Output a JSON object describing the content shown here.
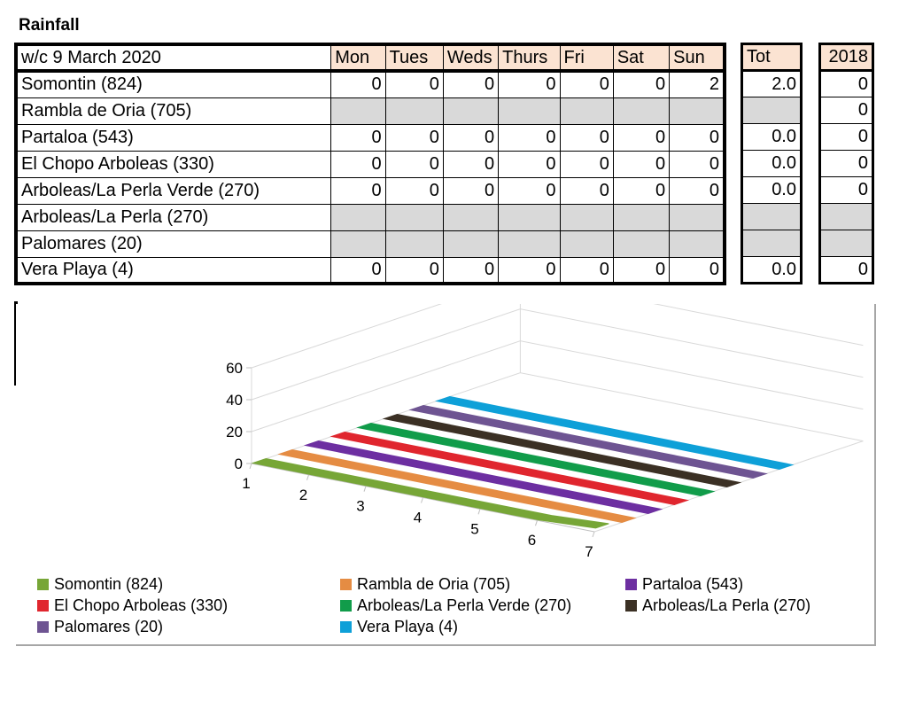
{
  "title": "Rainfall",
  "header": {
    "week": "w/c  9 March 2020",
    "days": [
      "Mon",
      "Tues",
      "Weds",
      "Thurs",
      "Fri",
      "Sat",
      "Sun"
    ],
    "tot": "Tot",
    "year": "2018"
  },
  "rows": [
    {
      "name": "Somontin (824)",
      "days": [
        "0",
        "0",
        "0",
        "0",
        "0",
        "0",
        "2"
      ],
      "tot": "2.0",
      "year": "0"
    },
    {
      "name": "Rambla de Oria (705)",
      "days": [
        "",
        "",
        "",
        "",
        "",
        "",
        ""
      ],
      "tot": "",
      "year": "0"
    },
    {
      "name": "Partaloa (543)",
      "days": [
        "0",
        "0",
        "0",
        "0",
        "0",
        "0",
        "0"
      ],
      "tot": "0.0",
      "year": "0"
    },
    {
      "name": "El Chopo Arboleas (330)",
      "days": [
        "0",
        "0",
        "0",
        "0",
        "0",
        "0",
        "0"
      ],
      "tot": "0.0",
      "year": "0"
    },
    {
      "name": "Arboleas/La Perla Verde (270)",
      "days": [
        "0",
        "0",
        "0",
        "0",
        "0",
        "0",
        "0"
      ],
      "tot": "0.0",
      "year": "0"
    },
    {
      "name": "Arboleas/La Perla (270)",
      "days": [
        "",
        "",
        "",
        "",
        "",
        "",
        ""
      ],
      "tot": "",
      "year": ""
    },
    {
      "name": "Palomares (20)",
      "days": [
        "",
        "",
        "",
        "",
        "",
        "",
        ""
      ],
      "tot": "",
      "year": ""
    },
    {
      "name": "Vera Playa (4)",
      "days": [
        "0",
        "0",
        "0",
        "0",
        "0",
        "0",
        "0"
      ],
      "tot": "0.0",
      "year": "0"
    }
  ],
  "chart_data": {
    "type": "line",
    "view": "3d",
    "x": [
      1,
      2,
      3,
      4,
      5,
      6,
      7
    ],
    "yticks": [
      0,
      20,
      40,
      60
    ],
    "ylim": [
      0,
      60
    ],
    "grid": true,
    "legend_position": "bottom",
    "series": [
      {
        "name": "Somontin (824)",
        "color": "#77a637",
        "values": [
          0,
          0,
          0,
          0,
          0,
          0,
          2
        ]
      },
      {
        "name": "Rambla de Oria (705)",
        "color": "#e58c43",
        "values": [
          0,
          0,
          0,
          0,
          0,
          0,
          0
        ]
      },
      {
        "name": "Partaloa (543)",
        "color": "#6d2fa1",
        "values": [
          0,
          0,
          0,
          0,
          0,
          0,
          0
        ]
      },
      {
        "name": "El Chopo Arboleas (330)",
        "color": "#e0262e",
        "values": [
          0,
          0,
          0,
          0,
          0,
          0,
          0
        ]
      },
      {
        "name": "Arboleas/La Perla Verde (270)",
        "color": "#119c4a",
        "values": [
          0,
          0,
          0,
          0,
          0,
          0,
          0
        ]
      },
      {
        "name": "Arboleas/La Perla (270)",
        "color": "#3b3024",
        "values": [
          0,
          0,
          0,
          0,
          0,
          0,
          0
        ]
      },
      {
        "name": "Palomares (20)",
        "color": "#6e5492",
        "values": [
          0,
          0,
          0,
          0,
          0,
          0,
          0
        ]
      },
      {
        "name": "Vera Playa (4)",
        "color": "#0ea0d8",
        "values": [
          0,
          0,
          0,
          0,
          0,
          0,
          0
        ]
      }
    ]
  }
}
